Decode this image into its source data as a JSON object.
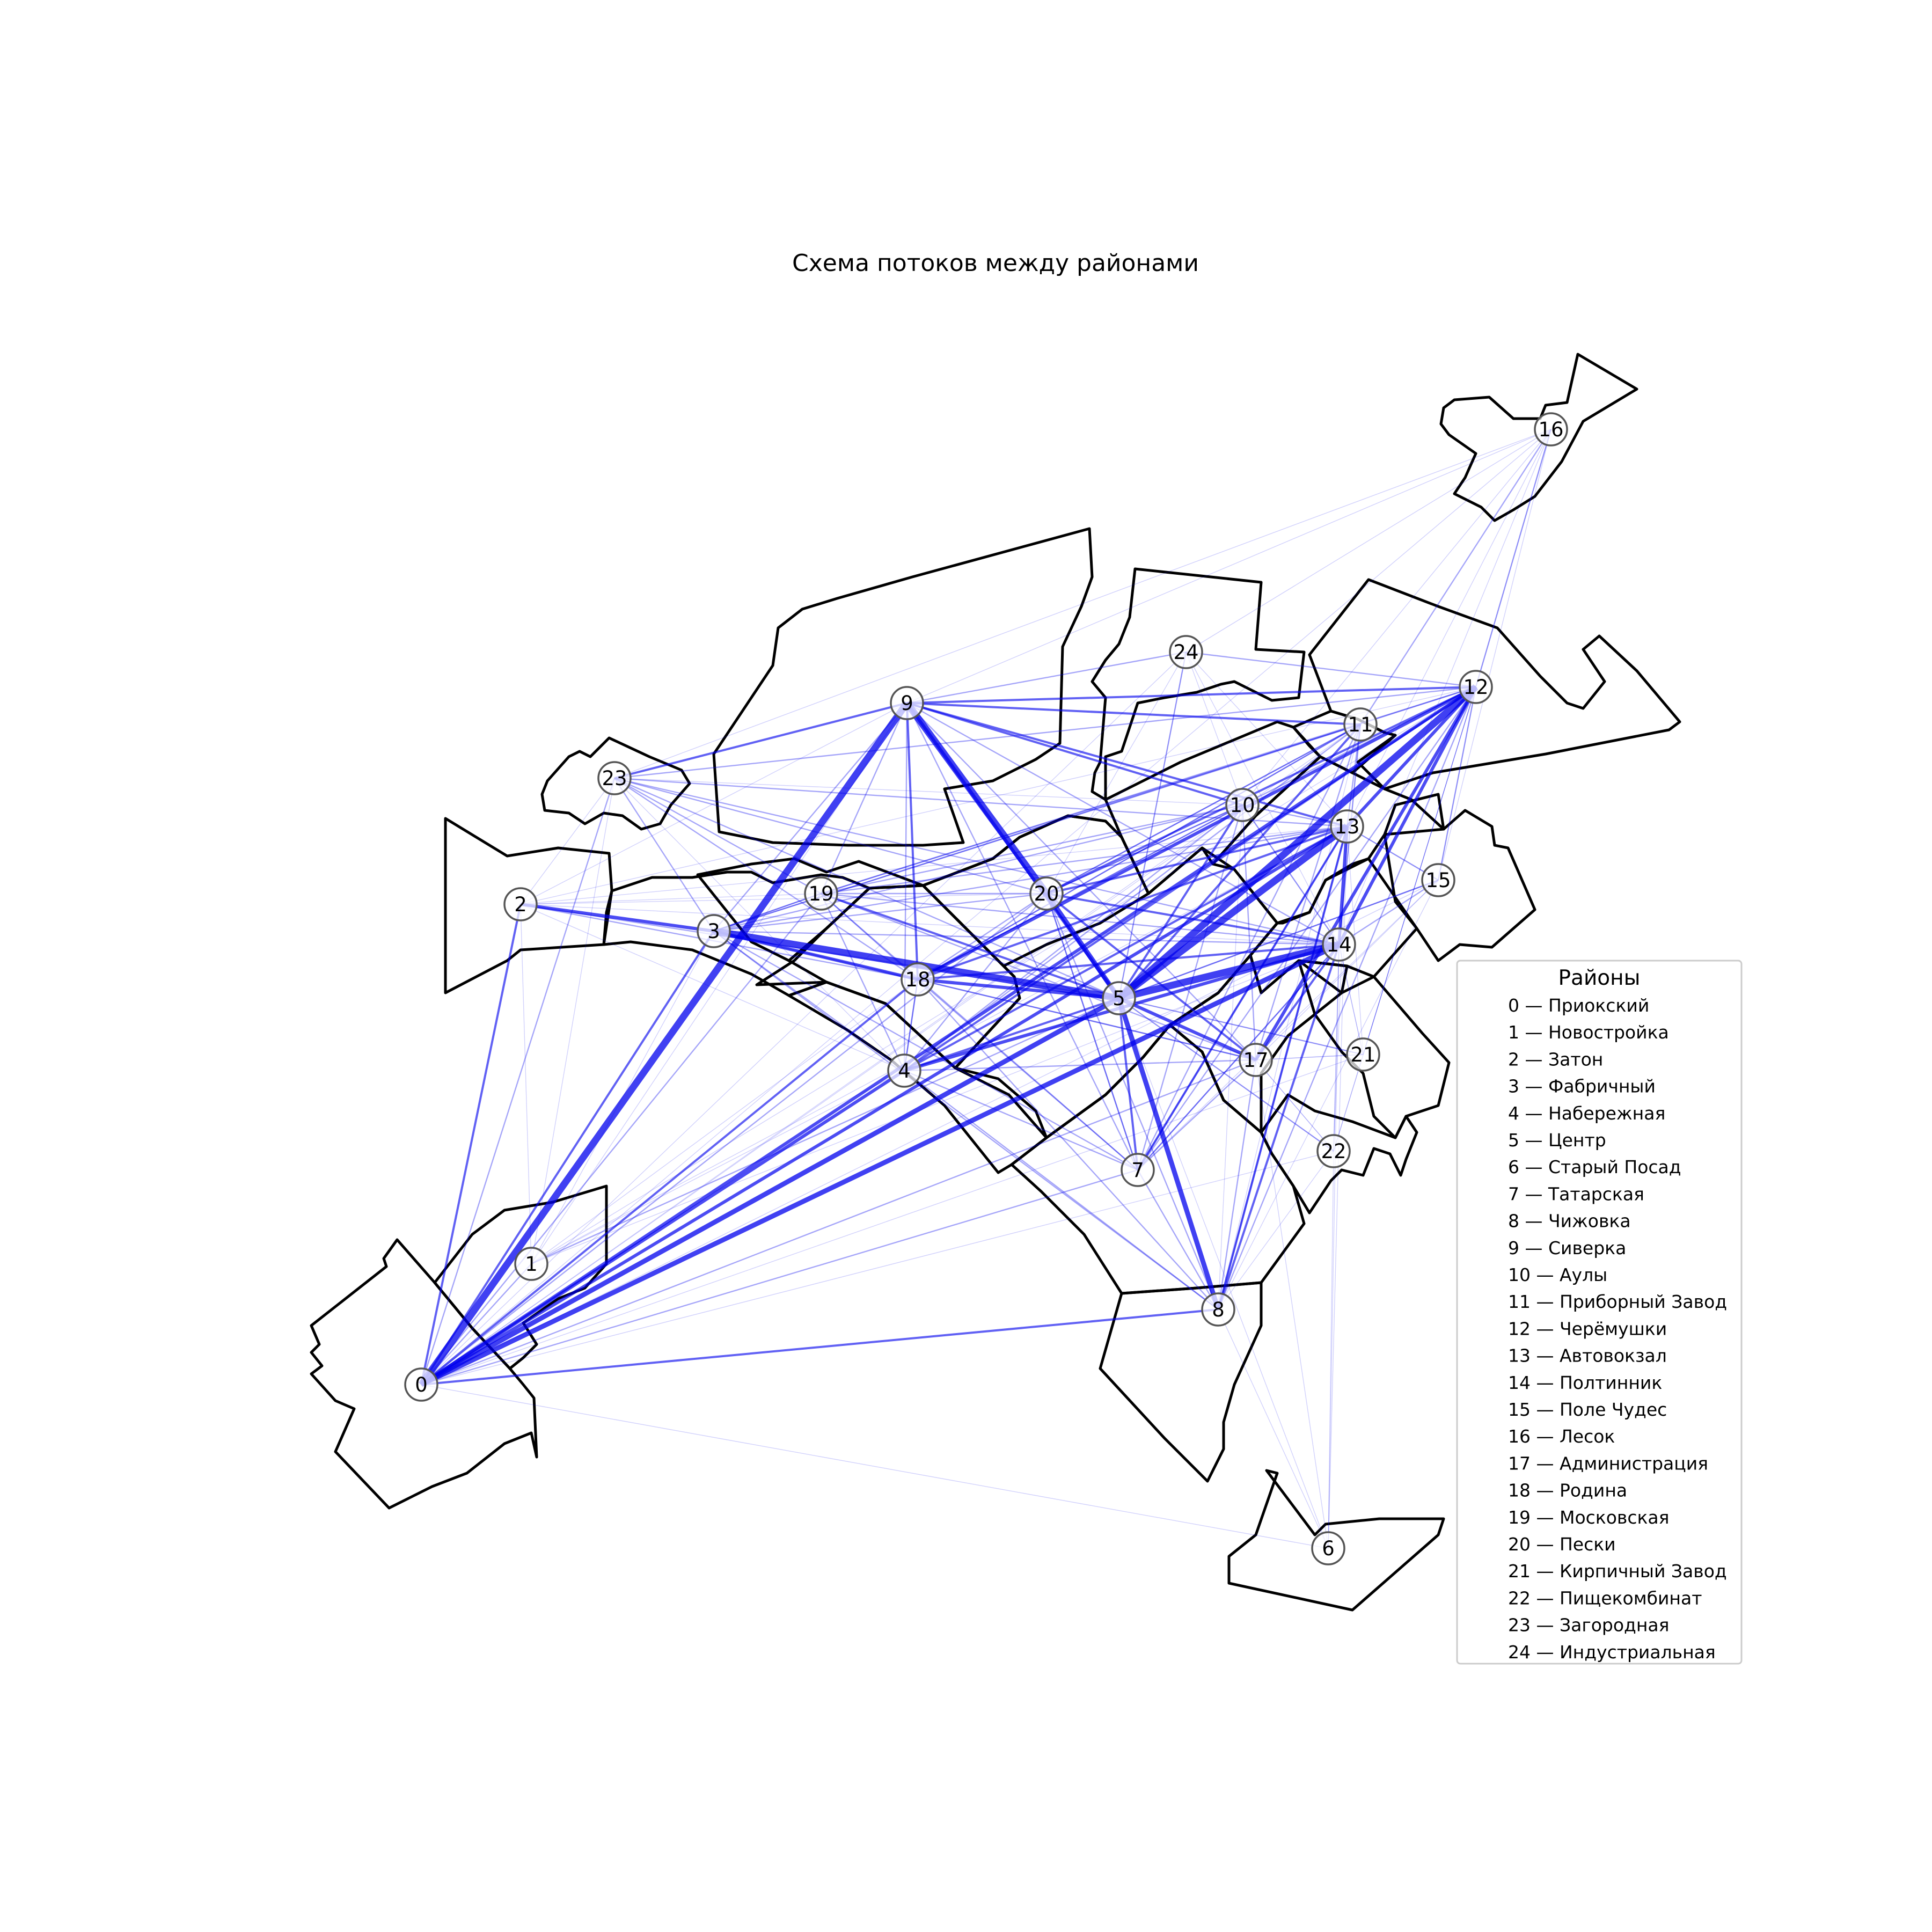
{
  "title": "Схема потоков между районами",
  "colors": {
    "flow": "#0000ee",
    "border": "#000000",
    "node_stroke": "#555555"
  },
  "legend": {
    "title": "Районы",
    "items": [
      "0 — Приокский",
      "1 — Новостройка",
      "2 — Затон",
      "3 — Фабричный",
      "4 — Набережная",
      "5 — Центр",
      "6 — Старый Посад",
      "7 — Татарская",
      "8 — Чижовка",
      "9 — Сиверка",
      "10 — Аулы",
      "11 — Приборный Завод",
      "12 — Черёмушки",
      "13 — Автовокзал",
      "14 — Полтинник",
      "15 — Поле Чудес",
      "16 — Лесок",
      "17 — Администрация",
      "18 — Родина",
      "19 — Московская",
      "20 — Пески",
      "21 — Кирпичный Завод",
      "22 — Пищекомбинат",
      "23 — Загородная",
      "24 — Индустриальная"
    ]
  },
  "districts": [
    {
      "id": 0,
      "label": "0"
    },
    {
      "id": 1,
      "label": "1"
    },
    {
      "id": 2,
      "label": "2"
    },
    {
      "id": 3,
      "label": "3"
    },
    {
      "id": 4,
      "label": "4"
    },
    {
      "id": 5,
      "label": "5"
    },
    {
      "id": 6,
      "label": "6"
    },
    {
      "id": 7,
      "label": "7"
    },
    {
      "id": 8,
      "label": "8"
    },
    {
      "id": 9,
      "label": "9"
    },
    {
      "id": 10,
      "label": "10"
    },
    {
      "id": 11,
      "label": "11"
    },
    {
      "id": 12,
      "label": "12"
    },
    {
      "id": 13,
      "label": "13"
    },
    {
      "id": 14,
      "label": "14"
    },
    {
      "id": 15,
      "label": "15"
    },
    {
      "id": 16,
      "label": "16"
    },
    {
      "id": 17,
      "label": "17"
    },
    {
      "id": 18,
      "label": "18"
    },
    {
      "id": 19,
      "label": "19"
    },
    {
      "id": 20,
      "label": "20"
    },
    {
      "id": 21,
      "label": "21"
    },
    {
      "id": 22,
      "label": "22"
    },
    {
      "id": 23,
      "label": "23"
    },
    {
      "id": 24,
      "label": "24"
    }
  ],
  "flows": [
    [
      5,
      14,
      9
    ],
    [
      5,
      13,
      8
    ],
    [
      5,
      12,
      8
    ],
    [
      0,
      9,
      8
    ],
    [
      9,
      20,
      8
    ],
    [
      5,
      20,
      7
    ],
    [
      3,
      5,
      8
    ],
    [
      5,
      8,
      6
    ],
    [
      0,
      5,
      6
    ],
    [
      0,
      14,
      6
    ],
    [
      0,
      4,
      5
    ],
    [
      9,
      5,
      5
    ],
    [
      12,
      13,
      5
    ],
    [
      12,
      14,
      5
    ],
    [
      13,
      14,
      5
    ],
    [
      12,
      18,
      5
    ],
    [
      12,
      17,
      4
    ],
    [
      5,
      17,
      5
    ],
    [
      18,
      5,
      5
    ],
    [
      0,
      13,
      4
    ],
    [
      0,
      12,
      4
    ],
    [
      2,
      3,
      4
    ],
    [
      3,
      18,
      4
    ],
    [
      9,
      18,
      3
    ],
    [
      9,
      12,
      3
    ],
    [
      9,
      23,
      3
    ],
    [
      9,
      10,
      3
    ],
    [
      9,
      13,
      3
    ],
    [
      9,
      11,
      3
    ],
    [
      23,
      5,
      2
    ],
    [
      14,
      8,
      3
    ],
    [
      13,
      8,
      3
    ],
    [
      14,
      17,
      3
    ],
    [
      13,
      7,
      3
    ],
    [
      0,
      8,
      3
    ],
    [
      0,
      2,
      3
    ],
    [
      0,
      23,
      2
    ],
    [
      0,
      1,
      2
    ],
    [
      0,
      18,
      3
    ],
    [
      0,
      3,
      3
    ],
    [
      4,
      14,
      4
    ],
    [
      4,
      13,
      3
    ],
    [
      4,
      12,
      3
    ],
    [
      18,
      13,
      3
    ],
    [
      18,
      14,
      3
    ],
    [
      20,
      14,
      3
    ],
    [
      20,
      13,
      3
    ],
    [
      20,
      12,
      3
    ],
    [
      20,
      17,
      3
    ],
    [
      5,
      7,
      3
    ],
    [
      5,
      10,
      3
    ],
    [
      5,
      11,
      3
    ],
    [
      5,
      15,
      2
    ],
    [
      5,
      21,
      2
    ],
    [
      5,
      22,
      2
    ],
    [
      5,
      19,
      3
    ],
    [
      5,
      4,
      3
    ],
    [
      5,
      24,
      2
    ],
    [
      19,
      12,
      2
    ],
    [
      19,
      13,
      2
    ],
    [
      19,
      14,
      2
    ],
    [
      3,
      13,
      2
    ],
    [
      3,
      14,
      2
    ],
    [
      3,
      12,
      2
    ],
    [
      3,
      17,
      2
    ],
    [
      3,
      20,
      2
    ],
    [
      18,
      20,
      2
    ],
    [
      18,
      17,
      2
    ],
    [
      18,
      7,
      2
    ],
    [
      17,
      7,
      2
    ],
    [
      17,
      8,
      2
    ],
    [
      14,
      7,
      2
    ],
    [
      12,
      7,
      2
    ],
    [
      12,
      8,
      2
    ],
    [
      12,
      16,
      2
    ],
    [
      16,
      11,
      2
    ],
    [
      16,
      13,
      1
    ],
    [
      16,
      14,
      1
    ],
    [
      16,
      12,
      1
    ],
    [
      16,
      15,
      1
    ],
    [
      16,
      23,
      1
    ],
    [
      16,
      24,
      1
    ],
    [
      16,
      9,
      1
    ],
    [
      16,
      10,
      1
    ],
    [
      24,
      12,
      2
    ],
    [
      24,
      9,
      2
    ],
    [
      24,
      10,
      1
    ],
    [
      24,
      13,
      1
    ],
    [
      24,
      14,
      1
    ],
    [
      24,
      5,
      1
    ],
    [
      24,
      20,
      1
    ],
    [
      23,
      14,
      2
    ],
    [
      23,
      13,
      2
    ],
    [
      23,
      12,
      2
    ],
    [
      23,
      18,
      2
    ],
    [
      23,
      3,
      2
    ],
    [
      23,
      19,
      2
    ],
    [
      23,
      20,
      2
    ],
    [
      23,
      4,
      1
    ],
    [
      23,
      10,
      1
    ],
    [
      2,
      5,
      2
    ],
    [
      2,
      18,
      2
    ],
    [
      2,
      19,
      1
    ],
    [
      2,
      14,
      1
    ],
    [
      2,
      13,
      1
    ],
    [
      2,
      12,
      1
    ],
    [
      1,
      5,
      2
    ],
    [
      1,
      14,
      1
    ],
    [
      1,
      13,
      1
    ],
    [
      1,
      12,
      1
    ],
    [
      1,
      3,
      1
    ],
    [
      1,
      23,
      1
    ],
    [
      15,
      5,
      2
    ],
    [
      15,
      14,
      2
    ],
    [
      15,
      13,
      2
    ],
    [
      15,
      12,
      2
    ],
    [
      15,
      17,
      1
    ],
    [
      15,
      7,
      1
    ],
    [
      15,
      8,
      1
    ],
    [
      21,
      14,
      1
    ],
    [
      21,
      13,
      1
    ],
    [
      21,
      12,
      1
    ],
    [
      21,
      5,
      1
    ],
    [
      21,
      17,
      1
    ],
    [
      22,
      14,
      1
    ],
    [
      22,
      13,
      1
    ],
    [
      22,
      12,
      1
    ],
    [
      22,
      5,
      1
    ],
    [
      22,
      17,
      1
    ],
    [
      22,
      8,
      1
    ],
    [
      6,
      8,
      1
    ],
    [
      6,
      14,
      1
    ],
    [
      6,
      13,
      1
    ],
    [
      6,
      5,
      1
    ],
    [
      6,
      0,
      1
    ],
    [
      6,
      17,
      1
    ],
    [
      6,
      22,
      1
    ],
    [
      10,
      13,
      2
    ],
    [
      10,
      14,
      2
    ],
    [
      10,
      12,
      2
    ],
    [
      10,
      17,
      2
    ],
    [
      10,
      7,
      2
    ],
    [
      10,
      18,
      2
    ],
    [
      10,
      4,
      2
    ],
    [
      10,
      19,
      2
    ],
    [
      10,
      20,
      2
    ],
    [
      11,
      14,
      2
    ],
    [
      11,
      13,
      2
    ],
    [
      11,
      17,
      2
    ],
    [
      11,
      18,
      2
    ],
    [
      11,
      4,
      2
    ],
    [
      11,
      7,
      2
    ],
    [
      11,
      19,
      2
    ],
    [
      11,
      20,
      2
    ],
    [
      19,
      18,
      2
    ],
    [
      19,
      20,
      2
    ],
    [
      19,
      17,
      2
    ],
    [
      19,
      7,
      2
    ],
    [
      19,
      4,
      2
    ],
    [
      19,
      3,
      2
    ],
    [
      4,
      17,
      2
    ],
    [
      4,
      7,
      2
    ],
    [
      4,
      18,
      2
    ],
    [
      4,
      20,
      2
    ],
    [
      4,
      8,
      2
    ],
    [
      7,
      8,
      2
    ],
    [
      7,
      14,
      2
    ],
    [
      7,
      13,
      2
    ],
    [
      7,
      20,
      2
    ],
    [
      8,
      13,
      2
    ],
    [
      8,
      11,
      1
    ],
    [
      8,
      10,
      1
    ],
    [
      9,
      19,
      2
    ],
    [
      9,
      3,
      2
    ],
    [
      9,
      4,
      2
    ],
    [
      9,
      17,
      2
    ],
    [
      9,
      14,
      2
    ],
    [
      9,
      7,
      2
    ],
    [
      3,
      4,
      2
    ],
    [
      3,
      7,
      2
    ],
    [
      3,
      8,
      2
    ],
    [
      3,
      10,
      2
    ],
    [
      3,
      11,
      2
    ],
    [
      3,
      19,
      2
    ],
    [
      18,
      4,
      2
    ],
    [
      18,
      8,
      2
    ],
    [
      18,
      10,
      2
    ],
    [
      18,
      11,
      2
    ],
    [
      0,
      17,
      2
    ],
    [
      0,
      7,
      2
    ],
    [
      0,
      20,
      2
    ],
    [
      0,
      19,
      2
    ],
    [
      0,
      10,
      1
    ],
    [
      0,
      11,
      1
    ],
    [
      0,
      15,
      1
    ],
    [
      0,
      21,
      1
    ],
    [
      0,
      22,
      1
    ],
    [
      0,
      24,
      1
    ],
    [
      0,
      16,
      1
    ],
    [
      1,
      18,
      1
    ],
    [
      1,
      4,
      1
    ],
    [
      1,
      9,
      1
    ],
    [
      1,
      2,
      1
    ],
    [
      2,
      9,
      1
    ],
    [
      2,
      23,
      1
    ],
    [
      2,
      4,
      1
    ],
    [
      2,
      20,
      1
    ],
    [
      20,
      10,
      2
    ],
    [
      20,
      11,
      2
    ],
    [
      20,
      7,
      2
    ],
    [
      20,
      8,
      2
    ],
    [
      14,
      10,
      1
    ],
    [
      14,
      11,
      1
    ],
    [
      14,
      21,
      1
    ],
    [
      14,
      22,
      1
    ],
    [
      13,
      15,
      1
    ],
    [
      17,
      21,
      1
    ],
    [
      17,
      22,
      1
    ],
    [
      12,
      15,
      1
    ],
    [
      12,
      21,
      1
    ],
    [
      12,
      22,
      1
    ]
  ]
}
